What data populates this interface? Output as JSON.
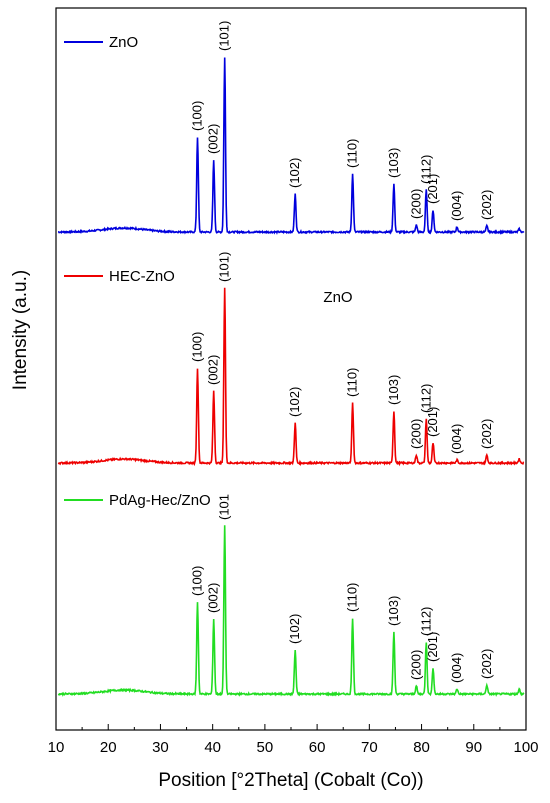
{
  "chart_data": {
    "type": "line",
    "xlabel": "Position [°2Theta] (Cobalt (Co))",
    "ylabel": "Intensity (a.u.)",
    "xlim": [
      10,
      100
    ],
    "x_ticks": [
      "10",
      "20",
      "30",
      "40",
      "50",
      "60",
      "70",
      "80",
      "90",
      "100"
    ],
    "grid": false,
    "legend_placement": "top-left of each panel",
    "annotations": [
      {
        "text": "ZnO",
        "x": 63,
        "y_relative_to": "HEC-ZnO"
      }
    ],
    "series": [
      {
        "name": "ZnO",
        "color": "#0000dd",
        "baseline": 1,
        "peaks": [
          {
            "x": 37.1,
            "height": 95,
            "label": "(100)"
          },
          {
            "x": 40.2,
            "height": 72,
            "label": "(002)"
          },
          {
            "x": 42.3,
            "height": 175,
            "label": "(101)"
          },
          {
            "x": 55.8,
            "height": 38,
            "label": "(102)"
          },
          {
            "x": 66.8,
            "height": 58,
            "label": "(110)"
          },
          {
            "x": 74.7,
            "height": 48,
            "label": "(103)"
          },
          {
            "x": 79.0,
            "height": 7,
            "label": "(200)"
          },
          {
            "x": 80.9,
            "height": 42,
            "label": "(112)"
          },
          {
            "x": 82.2,
            "height": 22,
            "label": "(201)"
          },
          {
            "x": 86.8,
            "height": 5,
            "label": "(004)"
          },
          {
            "x": 92.5,
            "height": 6,
            "label": "(202)"
          },
          {
            "x": 98.7,
            "height": 3,
            "label": ""
          }
        ]
      },
      {
        "name": "HEC-ZnO",
        "color": "#ee0000",
        "baseline": 3,
        "peaks": [
          {
            "x": 37.1,
            "height": 95,
            "label": "(100)"
          },
          {
            "x": 40.2,
            "height": 72,
            "label": "(002)"
          },
          {
            "x": 42.3,
            "height": 175,
            "label": "(101)"
          },
          {
            "x": 55.8,
            "height": 40,
            "label": "(102)"
          },
          {
            "x": 66.8,
            "height": 60,
            "label": "(110)"
          },
          {
            "x": 74.7,
            "height": 52,
            "label": "(103)"
          },
          {
            "x": 79.0,
            "height": 8,
            "label": "(200)"
          },
          {
            "x": 80.9,
            "height": 44,
            "label": "(112)"
          },
          {
            "x": 82.2,
            "height": 20,
            "label": "(201)"
          },
          {
            "x": 86.8,
            "height": 3,
            "label": "(004)"
          },
          {
            "x": 92.5,
            "height": 8,
            "label": "(202)"
          },
          {
            "x": 98.7,
            "height": 4,
            "label": ""
          }
        ]
      },
      {
        "name": "PdAg-Hec/ZnO",
        "color": "#22dd22",
        "baseline": 4,
        "peaks": [
          {
            "x": 37.1,
            "height": 92,
            "label": "(100)"
          },
          {
            "x": 40.2,
            "height": 75,
            "label": "(002)"
          },
          {
            "x": 42.3,
            "height": 168,
            "label": "(101"
          },
          {
            "x": 55.8,
            "height": 44,
            "label": "(102)"
          },
          {
            "x": 66.8,
            "height": 76,
            "label": "(110)"
          },
          {
            "x": 74.7,
            "height": 62,
            "label": "(103)"
          },
          {
            "x": 79.0,
            "height": 8,
            "label": "(200)"
          },
          {
            "x": 80.9,
            "height": 52,
            "label": "(112)"
          },
          {
            "x": 82.2,
            "height": 26,
            "label": "(201)"
          },
          {
            "x": 86.8,
            "height": 5,
            "label": "(004)"
          },
          {
            "x": 92.5,
            "height": 9,
            "label": "(202)"
          },
          {
            "x": 98.7,
            "height": 5,
            "label": ""
          }
        ]
      }
    ]
  }
}
